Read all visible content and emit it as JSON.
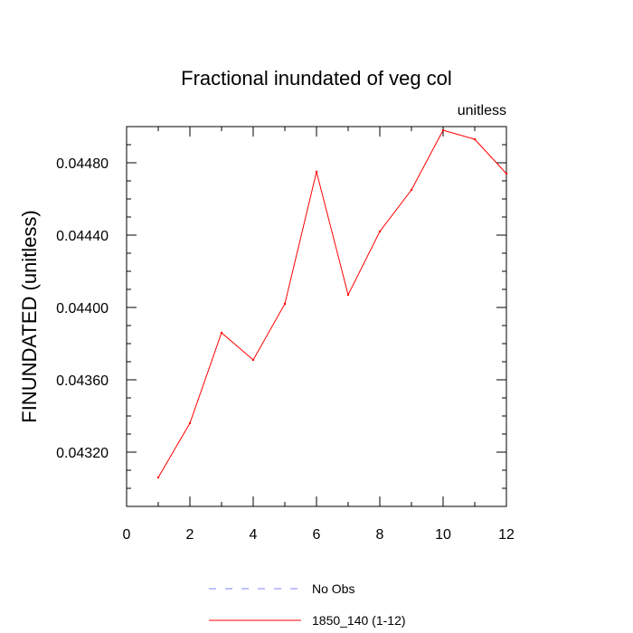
{
  "chart_data": {
    "type": "line",
    "title": "Fractional inundated of veg col",
    "units_label": "unitless",
    "xlabel": "",
    "ylabel": "FINUNDATED  (unitless)",
    "xlim": [
      0,
      12
    ],
    "ylim": [
      0.0429,
      0.045
    ],
    "x_ticks": [
      0,
      2,
      4,
      6,
      8,
      10,
      12
    ],
    "x_tick_labels": [
      "0",
      "2",
      "4",
      "6",
      "8",
      "10",
      "12"
    ],
    "y_ticks": [
      0.0432,
      0.0436,
      0.044,
      0.0444,
      0.0448
    ],
    "y_tick_labels": [
      "0.04320",
      "0.04360",
      "0.04400",
      "0.04440",
      "0.04480"
    ],
    "grid": false,
    "legend_position": "bottom",
    "series": [
      {
        "name": "No Obs",
        "color": "#8080ff",
        "dash": "dashed",
        "x": [],
        "values": []
      },
      {
        "name": "1850_140 (1-12)",
        "color": "#ff0000",
        "dash": "solid",
        "x": [
          1,
          2,
          3,
          4,
          5,
          6,
          7,
          8,
          9,
          10,
          11,
          12
        ],
        "values": [
          0.04306,
          0.04336,
          0.04386,
          0.04371,
          0.04402,
          0.04475,
          0.04407,
          0.04442,
          0.04465,
          0.04498,
          0.04493,
          0.04474
        ]
      }
    ]
  }
}
